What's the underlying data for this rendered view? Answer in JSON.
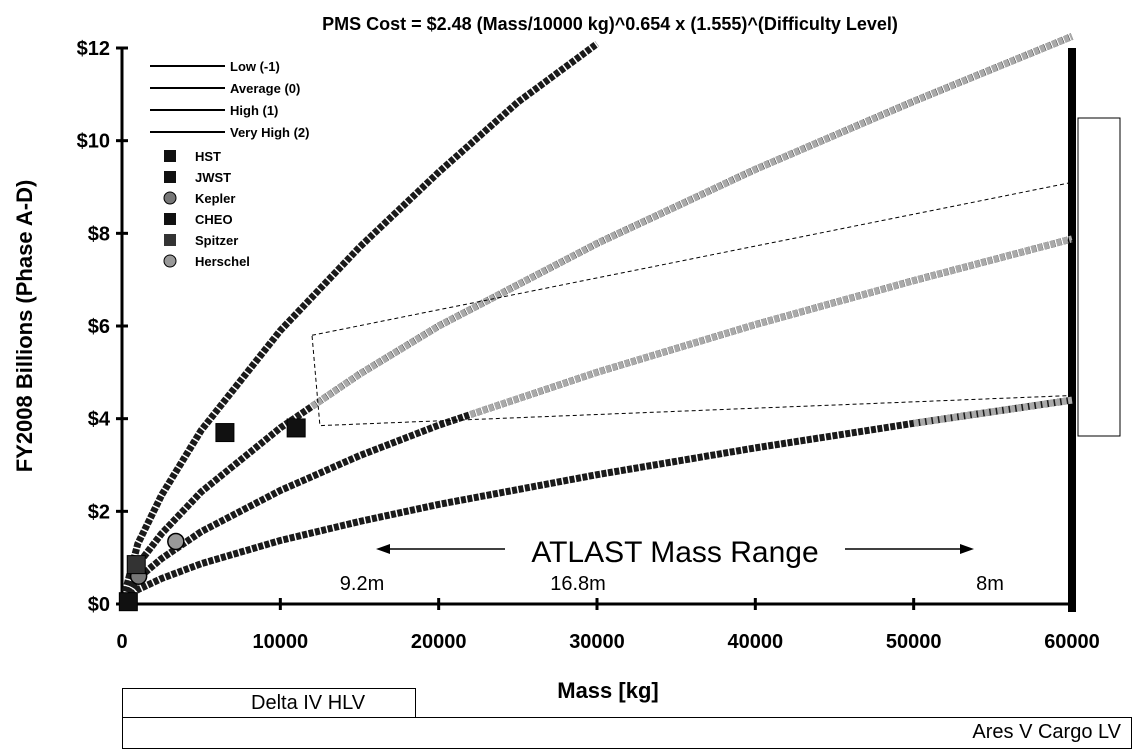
{
  "chart_data": {
    "type": "line",
    "title": "PMS Cost = $2.48 (Mass/10000 kg)^0.654 x (1.555)^(Difficulty Level)",
    "xlabel": "Mass [kg]",
    "ylabel": "FY2008 Billions (Phase A-D)",
    "xlim": [
      0,
      60000
    ],
    "ylim": [
      0,
      12
    ],
    "x_ticks": [
      "0",
      "10000",
      "20000",
      "30000",
      "40000",
      "50000",
      "60000"
    ],
    "y_ticks": [
      "$0",
      "$2",
      "$4",
      "$6",
      "$8",
      "$10",
      "$12"
    ],
    "grid": false,
    "legend_position": "top-left",
    "series": [
      {
        "name": "Low (-1)",
        "x": [
          0,
          1000,
          2500,
          5000,
          10000,
          15000,
          20000,
          30000,
          40000,
          50000,
          60000
        ],
        "y": [
          0,
          0.31,
          0.55,
          0.87,
          1.37,
          1.78,
          2.15,
          2.79,
          3.37,
          3.9,
          4.4
        ]
      },
      {
        "name": "Average (0)",
        "x": [
          0,
          1000,
          2500,
          5000,
          10000,
          15000,
          20000,
          30000,
          40000,
          50000,
          60000
        ],
        "y": [
          0,
          0.55,
          0.98,
          1.56,
          2.45,
          3.2,
          3.86,
          5.0,
          6.03,
          6.98,
          7.88
        ]
      },
      {
        "name": "High (1)",
        "x": [
          0,
          1000,
          2500,
          5000,
          10000,
          15000,
          20000,
          30000,
          40000,
          50000,
          60000
        ],
        "y": [
          0,
          0.85,
          1.52,
          2.42,
          3.8,
          4.96,
          6.0,
          7.78,
          9.38,
          10.85,
          12.25
        ]
      },
      {
        "name": "Very High (2)",
        "x": [
          0,
          1000,
          2500,
          5000,
          10000,
          15000,
          20000,
          25000,
          30000
        ],
        "y": [
          0,
          1.3,
          2.35,
          3.75,
          5.9,
          7.7,
          9.32,
          10.83,
          12.09
        ]
      }
    ],
    "points": [
      {
        "name": "HST",
        "x": 11000,
        "y": 3.8
      },
      {
        "name": "JWST",
        "x": 6500,
        "y": 3.7
      },
      {
        "name": "Kepler",
        "x": 1050,
        "y": 0.6
      },
      {
        "name": "CHEO",
        "x": 400,
        "y": 0.05
      },
      {
        "name": "Spitzer",
        "x": 900,
        "y": 0.85
      },
      {
        "name": "Herschel",
        "x": 3400,
        "y": 1.35
      }
    ],
    "annotations": {
      "range_label": "ATLAST Mass Range",
      "markers": [
        "9.2m",
        "16.8m",
        "8m"
      ]
    },
    "launch_vehicles": [
      "Delta IV HLV",
      "Ares V Cargo LV"
    ]
  }
}
